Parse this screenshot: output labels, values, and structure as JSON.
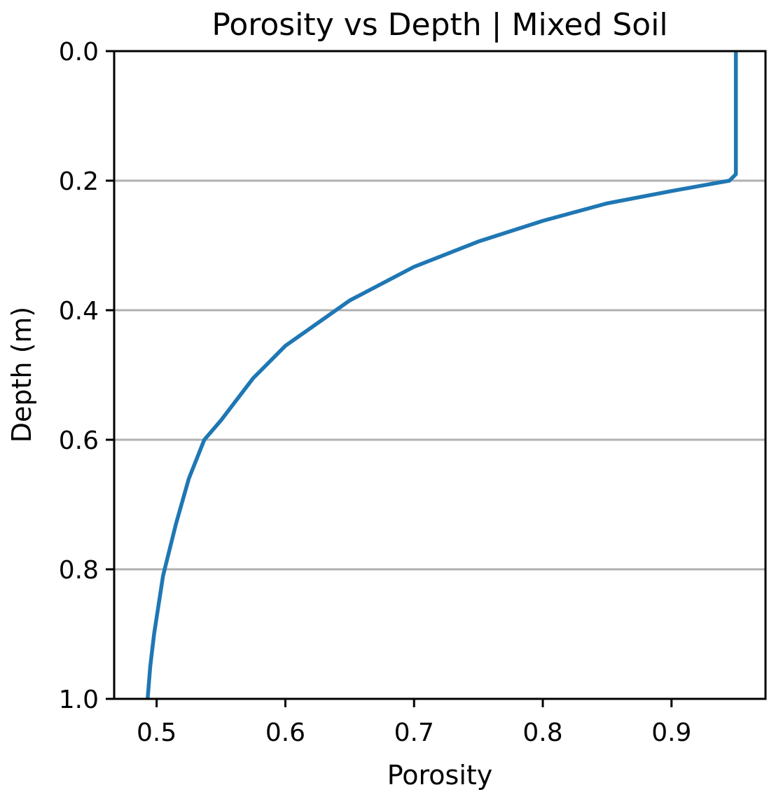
{
  "chart_data": {
    "type": "line",
    "title": "Porosity vs Depth | Mixed Soil",
    "xlabel": "Porosity",
    "ylabel": "Depth (m)",
    "xlim": [
      0.467,
      0.973
    ],
    "ylim": [
      1.0,
      0.0
    ],
    "y_inverted": true,
    "xticks": [
      0.5,
      0.6,
      0.7,
      0.8,
      0.9
    ],
    "xtick_labels": [
      "0.5",
      "0.6",
      "0.7",
      "0.8",
      "0.9"
    ],
    "yticks": [
      0.0,
      0.2,
      0.4,
      0.6,
      0.8,
      1.0
    ],
    "ytick_labels": [
      "0.0",
      "0.2",
      "0.4",
      "0.6",
      "0.8",
      "1.0"
    ],
    "grid": "horizontal",
    "legend": "none",
    "series": [
      {
        "color": "#1f77b4",
        "points": [
          [
            0.95,
            0.0
          ],
          [
            0.95,
            0.05
          ],
          [
            0.95,
            0.1
          ],
          [
            0.95,
            0.15
          ],
          [
            0.95,
            0.19
          ],
          [
            0.945,
            0.2
          ],
          [
            0.9,
            0.216
          ],
          [
            0.85,
            0.235
          ],
          [
            0.8,
            0.262
          ],
          [
            0.75,
            0.294
          ],
          [
            0.7,
            0.333
          ],
          [
            0.65,
            0.385
          ],
          [
            0.6,
            0.455
          ],
          [
            0.575,
            0.505
          ],
          [
            0.55,
            0.57
          ],
          [
            0.537,
            0.6
          ],
          [
            0.525,
            0.66
          ],
          [
            0.515,
            0.73
          ],
          [
            0.505,
            0.81
          ],
          [
            0.498,
            0.9
          ],
          [
            0.495,
            0.95
          ],
          [
            0.493,
            1.0
          ]
        ]
      }
    ]
  },
  "colors": {
    "line": "#1f77b4",
    "grid": "#b0b0b0",
    "axes": "#000000"
  }
}
